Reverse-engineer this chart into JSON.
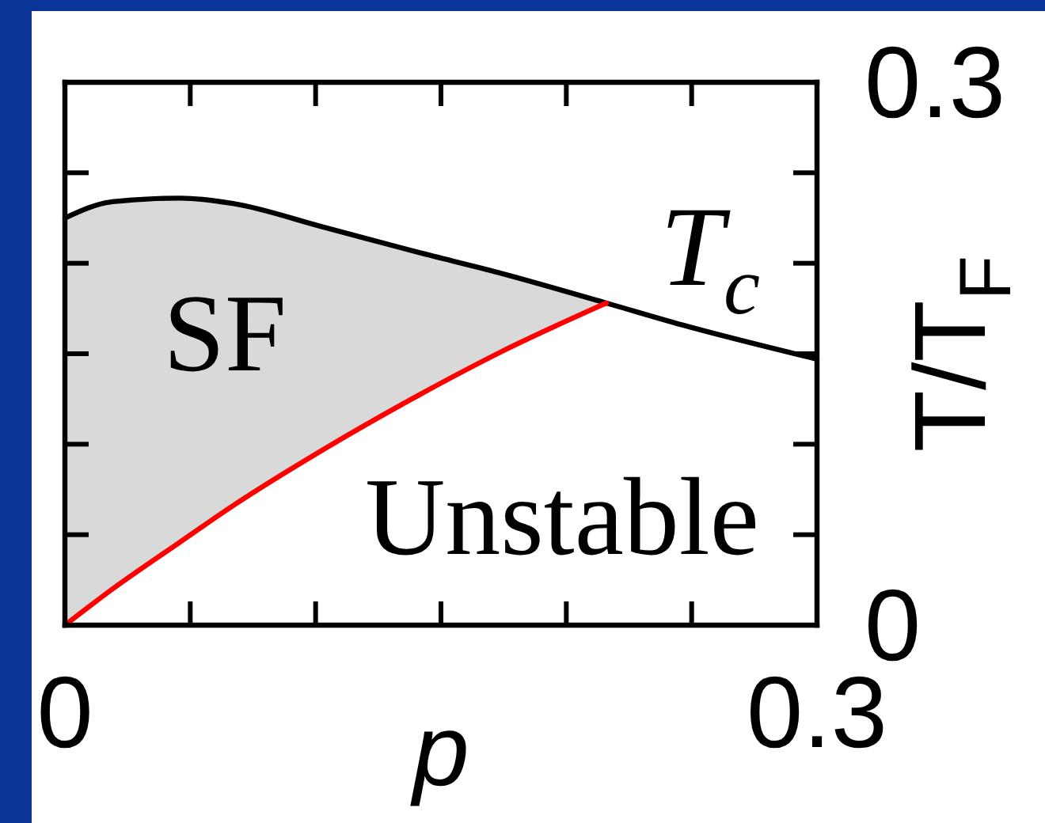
{
  "chart_data": {
    "type": "line",
    "xlabel": "p",
    "ylabel": "T/T$_{F}$",
    "xlim": [
      0,
      0.3
    ],
    "ylim": [
      0,
      0.3
    ],
    "xticks": [
      0,
      {
        "value": 0.05,
        "label": null
      },
      {
        "value": 0.1,
        "label": null
      },
      {
        "value": 0.15,
        "label": null
      },
      {
        "value": 0.2,
        "label": null
      },
      {
        "value": 0.25,
        "label": null
      },
      0.3
    ],
    "yticks": [
      0,
      {
        "value": 0.05,
        "label": null
      },
      {
        "value": 0.1,
        "label": null
      },
      {
        "value": 0.15,
        "label": null
      },
      {
        "value": 0.2,
        "label": null
      },
      {
        "value": 0.25,
        "label": null
      },
      0.3
    ],
    "series": [
      {
        "name": "T$_{c}$",
        "color": "#000000",
        "x": [
          0,
          0.019,
          0.046,
          0.067,
          0.103,
          0.141,
          0.1725,
          0.216,
          0.246,
          0.3
        ],
        "values": [
          0.225,
          0.234,
          0.236,
          0.233,
          0.22,
          0.206,
          0.195,
          0.178,
          0.166,
          0.147
        ],
        "lower": [
          0,
          0.02,
          0.046,
          0.066,
          0.097,
          0.127,
          0.15,
          0.178,
          null,
          null
        ],
        "upper": [
          0.225,
          0.234,
          0.236,
          0.233,
          0.22,
          0.206,
          0.195,
          0.178,
          null,
          null
        ]
      },
      {
        "color": "#ff0000",
        "x": [
          0,
          0.019,
          0.046,
          0.067,
          0.103,
          0.141,
          0.1725,
          0.216
        ],
        "values": [
          0,
          0.02,
          0.046,
          0.066,
          0.097,
          0.127,
          0.15,
          0.178
        ]
      }
    ],
    "annotations": [
      "SF",
      "Unstable"
    ]
  }
}
